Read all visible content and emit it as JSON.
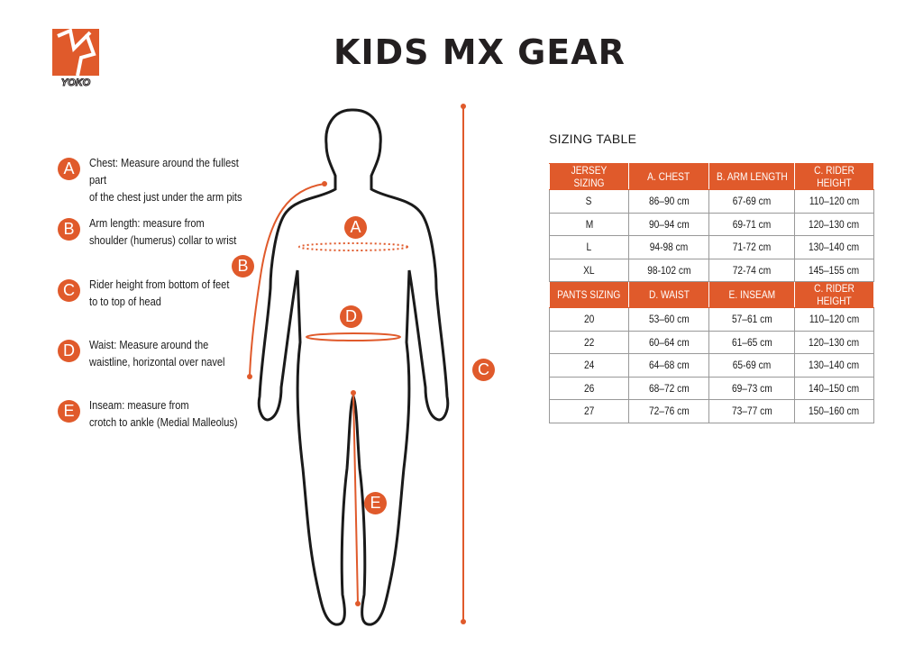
{
  "brand": {
    "name": "YOKO",
    "color": "#e05a2b"
  },
  "title": "KIDS MX GEAR",
  "legend": [
    {
      "letter": "A",
      "text": "Chest: Measure around  the fullest part\nof the chest just under the arm pits"
    },
    {
      "letter": "B",
      "text": "Arm length: measure from\nshoulder (humerus) collar to wrist"
    },
    {
      "letter": "C",
      "text": "Rider height from bottom of feet\nto to top of head"
    },
    {
      "letter": "D",
      "text": "Waist: Measure around the\nwaistline, horizontal over navel"
    },
    {
      "letter": "E",
      "text": "Inseam: measure from\ncrotch to ankle (Medial Malleolus)"
    }
  ],
  "figure_markers": {
    "a": "A",
    "b": "B",
    "c": "C",
    "d": "D",
    "e": "E"
  },
  "sizing_table": {
    "title": "SIZING TABLE",
    "jersey_header": [
      "JERSEY SIZING",
      "A. CHEST",
      "B. ARM LENGTH",
      "C. RIDER HEIGHT"
    ],
    "jersey_rows": [
      [
        "S",
        "86–90 cm",
        "67-69 cm",
        "110–120 cm"
      ],
      [
        "M",
        "90–94 cm",
        "69-71 cm",
        "120–130 cm"
      ],
      [
        "L",
        "94-98 cm",
        "71-72 cm",
        "130–140 cm"
      ],
      [
        "XL",
        "98-102 cm",
        "72-74 cm",
        "145–155 cm"
      ]
    ],
    "pants_header": [
      "PANTS SIZING",
      "D. WAIST",
      "E. INSEAM",
      "C. RIDER HEIGHT"
    ],
    "pants_rows": [
      [
        "20",
        "53–60 cm",
        "57–61 cm",
        "110–120 cm"
      ],
      [
        "22",
        "60–64 cm",
        "61–65 cm",
        "120–130 cm"
      ],
      [
        "24",
        "64–68 cm",
        "65-69 cm",
        "130–140 cm"
      ],
      [
        "26",
        "68–72 cm",
        "69–73 cm",
        "140–150 cm"
      ],
      [
        "27",
        "72–76 cm",
        "73–77 cm",
        "150–160 cm"
      ]
    ]
  }
}
